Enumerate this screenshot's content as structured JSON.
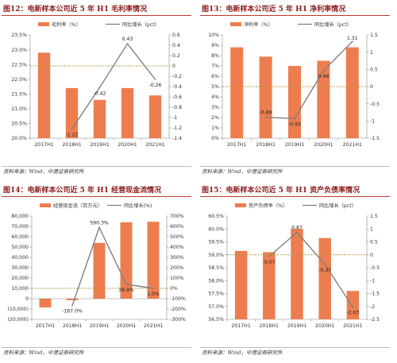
{
  "source_text": "资料来源：Wind，中港证券研究所",
  "colors": {
    "bar": "#ed7d4f",
    "line": "#808080",
    "title": "#8b1a1a",
    "rule": "#c0392b",
    "zero": "#b79a3c"
  },
  "panels": [
    {
      "title": "图12：电新样本公司近 5 年 H1 毛利率情况"
    },
    {
      "title": "图13：电新样本公司近 5 年 H1 净利率情况"
    },
    {
      "title": "图14：电新样本公司近 5 年 H1 经营现金流情况"
    },
    {
      "title": "图15：电新样本公司近 5 年 H1 资产负债率情况"
    }
  ],
  "chart_data": [
    {
      "type": "bar",
      "categories": [
        "2017H1",
        "2018H1",
        "2019H1",
        "2020H1",
        "2021H1"
      ],
      "series": [
        {
          "name": "毛利率（%）",
          "type": "bar",
          "axis": "left",
          "values": [
            22.9,
            21.7,
            21.3,
            21.7,
            21.45
          ]
        },
        {
          "name": "同比增长（pct）",
          "type": "line",
          "axis": "right",
          "values": [
            null,
            -1.22,
            -0.42,
            0.43,
            -0.26
          ]
        }
      ],
      "line_labels": [
        "",
        "-1.22",
        "-0.42",
        "0.43",
        "-0.26"
      ],
      "ylim_left": [
        20.0,
        23.5
      ],
      "yticks_left": [
        "20.0%",
        "20.5%",
        "21.0%",
        "21.5%",
        "22.0%",
        "22.5%",
        "23.0%",
        "23.5%"
      ],
      "ylim_right": [
        -1.4,
        0.6
      ],
      "yticks_right": [
        "-1.4",
        "-1.2",
        "-1",
        "-0.8",
        "-0.6",
        "-0.4",
        "-0.2",
        "0",
        "0.2",
        "0.4",
        "0.6"
      ],
      "legend": "top"
    },
    {
      "type": "bar",
      "categories": [
        "2017H1",
        "2018H1",
        "2019H1",
        "2020H1",
        "2021H1"
      ],
      "series": [
        {
          "name": "净利率（%）",
          "type": "bar",
          "axis": "left",
          "values": [
            8.8,
            7.9,
            7.0,
            7.5,
            8.8
          ]
        },
        {
          "name": "同比增长（pct）",
          "type": "line",
          "axis": "right",
          "values": [
            null,
            -0.89,
            -0.93,
            0.46,
            1.31
          ]
        }
      ],
      "line_labels": [
        "",
        "-0.89",
        "-0.93",
        "0.46",
        "1.31"
      ],
      "ylim_left": [
        0,
        10
      ],
      "yticks_left": [
        "0%",
        "1%",
        "2%",
        "3%",
        "4%",
        "5%",
        "6%",
        "7%",
        "8%",
        "9%",
        "10%"
      ],
      "ylim_right": [
        -1.5,
        1.5
      ],
      "yticks_right": [
        "-1.5",
        "-1",
        "-0.5",
        "0",
        "0.5",
        "1",
        "1.5"
      ],
      "legend": "top"
    },
    {
      "type": "bar",
      "categories": [
        "2017H1",
        "2018H1",
        "2019H1",
        "2020H1",
        "2021H1"
      ],
      "series": [
        {
          "name": "经营现金流（百万元）",
          "type": "bar",
          "axis": "left",
          "values": [
            -8500,
            -1500,
            54000,
            74000,
            74500
          ]
        },
        {
          "name": "同比增长(%)",
          "type": "line",
          "axis": "right",
          "values": [
            null,
            -167.0,
            590.3,
            38.9,
            1.0
          ]
        }
      ],
      "line_labels": [
        "",
        "-167.0%",
        "590.3%",
        "38.9%",
        "1.0%"
      ],
      "ylim_left": [
        -20000,
        80000
      ],
      "yticks_left": [
        "(20,000)",
        "(10,000)",
        "0",
        "10,000",
        "20,000",
        "30,000",
        "40,000",
        "50,000",
        "60,000",
        "70,000",
        "80,000"
      ],
      "ylim_right": [
        -300,
        700
      ],
      "yticks_right": [
        "-300%",
        "-200%",
        "-100%",
        "0%",
        "100%",
        "200%",
        "300%",
        "400%",
        "500%",
        "600%",
        "700%"
      ],
      "legend": "top"
    },
    {
      "type": "bar",
      "categories": [
        "2017H1",
        "2018H1",
        "2019H1",
        "2020H1",
        "2021H1"
      ],
      "series": [
        {
          "name": "资产负债率（%）",
          "type": "bar",
          "axis": "left",
          "values": [
            59.15,
            59.1,
            60.0,
            59.65,
            57.6
          ]
        },
        {
          "name": "同比增长（pct）",
          "type": "line",
          "axis": "right",
          "values": [
            null,
            -0.07,
            0.87,
            -0.37,
            -2.03
          ]
        }
      ],
      "line_labels": [
        "",
        "-0.07",
        "0.87",
        "-0.37",
        "-2.03"
      ],
      "ylim_left": [
        56.5,
        60.5
      ],
      "yticks_left": [
        "56.5%",
        "57.0%",
        "57.5%",
        "58.0%",
        "58.5%",
        "59.0%",
        "59.5%",
        "60.0%",
        "60.5%"
      ],
      "ylim_right": [
        -2.5,
        1.5
      ],
      "yticks_right": [
        "-2.5",
        "-2",
        "-1.5",
        "-1",
        "-0.5",
        "0",
        "0.5",
        "1",
        "1.5"
      ],
      "legend": "top"
    }
  ]
}
